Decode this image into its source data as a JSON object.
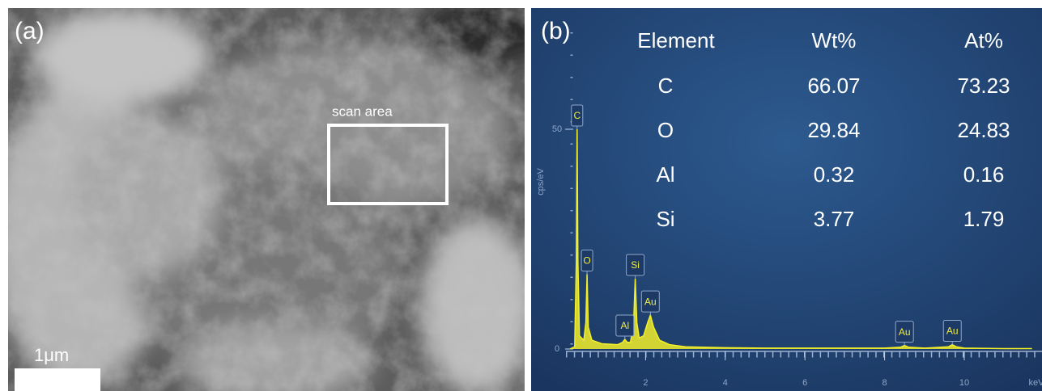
{
  "panel_a": {
    "label": "(a)",
    "annotation": "scan area",
    "scale_bar": "1μm"
  },
  "table": {
    "headers": [
      "Element",
      "Wt%",
      "At%"
    ],
    "rows": [
      [
        "C",
        "66.07",
        "73.23"
      ],
      [
        "O",
        "29.84",
        "24.83"
      ],
      [
        "Al",
        "0.32",
        "0.16"
      ],
      [
        "Si",
        "3.77",
        "1.79"
      ]
    ]
  },
  "chart_data": {
    "type": "line",
    "label": "(b)",
    "ylabel": "cps/eV",
    "xlabel": "keV",
    "color": "#f2ef2a",
    "x": [
      0.1,
      0.22,
      0.26,
      0.28,
      0.3,
      0.34,
      0.45,
      0.5,
      0.53,
      0.56,
      0.65,
      0.9,
      1.3,
      1.42,
      1.48,
      1.54,
      1.62,
      1.7,
      1.74,
      1.78,
      1.84,
      1.95,
      2.05,
      2.12,
      2.2,
      2.35,
      2.6,
      3,
      4,
      5,
      6,
      7,
      8,
      8.4,
      8.5,
      8.6,
      9,
      9.6,
      9.7,
      9.8,
      10,
      11,
      11.7
    ],
    "values": [
      0,
      0.5,
      20,
      50,
      20,
      3,
      2,
      6,
      17,
      5,
      2,
      1.2,
      1,
      1.5,
      2.2,
      1.5,
      1.5,
      6,
      16,
      6,
      2.5,
      3,
      6,
      7.7,
      5,
      2,
      1,
      0.5,
      0.3,
      0.2,
      0.2,
      0.2,
      0.2,
      0.4,
      0.8,
      0.4,
      0.2,
      0.5,
      1,
      0.5,
      0.2,
      0.1,
      0.1
    ],
    "xlim": [
      0,
      11.9
    ],
    "ylim": [
      0,
      50
    ],
    "xticks": [
      2,
      4,
      6,
      8,
      10
    ],
    "yticks": [
      0,
      50
    ],
    "annotations": [
      {
        "text": "C",
        "x": 0.28,
        "y": 50
      },
      {
        "text": "O",
        "x": 0.53,
        "y": 17
      },
      {
        "text": "Al",
        "x": 1.48,
        "y": 2.2
      },
      {
        "text": "Si",
        "x": 1.74,
        "y": 16
      },
      {
        "text": "Au",
        "x": 2.12,
        "y": 7.7
      },
      {
        "text": "Au",
        "x": 8.5,
        "y": 0.8
      },
      {
        "text": "Au",
        "x": 9.7,
        "y": 1
      }
    ]
  }
}
